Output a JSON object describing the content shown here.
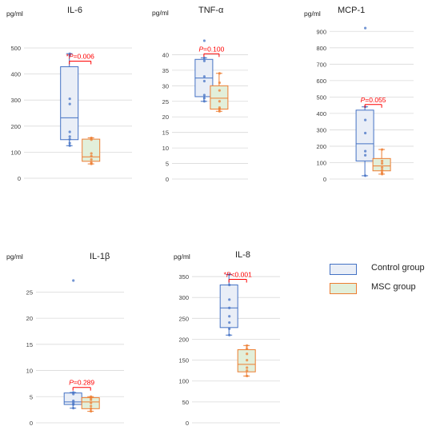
{
  "colors": {
    "control_stroke": "#4472c4",
    "control_fill": "#e9eef7",
    "msc_stroke": "#ed7d31",
    "msc_fill": "#e2efda",
    "significance": "#ff0000",
    "grid": "#d9d9d9",
    "axis_text": "#404040"
  },
  "legend": {
    "control_label": "Control group",
    "msc_label": "MSC group"
  },
  "chart_data": [
    {
      "type": "box",
      "title": "IL-6",
      "ylabel": "pg/ml",
      "ylim": [
        0,
        500
      ],
      "yticks": [
        0,
        100,
        200,
        300,
        400,
        500
      ],
      "pvalue": "P=0.006",
      "pvalue_star": "*",
      "series": [
        {
          "name": "Control group",
          "min": 125,
          "q1": 148,
          "median": 232,
          "q3": 428,
          "max": 478,
          "points": [
            478,
            472,
            305,
            285,
            178,
            160,
            150,
            135,
            125
          ]
        },
        {
          "name": "MSC group",
          "min": 55,
          "q1": 65,
          "median": 82,
          "q3": 150,
          "max": 155,
          "points": [
            155,
            148,
            95,
            85,
            72,
            60,
            55
          ]
        }
      ]
    },
    {
      "type": "box",
      "title": "TNF-α",
      "ylabel": "pg/ml",
      "ylim": [
        0,
        45
      ],
      "yticks": [
        0,
        5,
        10,
        15,
        20,
        25,
        30,
        35,
        40
      ],
      "pvalue": "P=0.100",
      "pvalue_star": "",
      "series": [
        {
          "name": "Control group",
          "min": 25,
          "q1": 26.5,
          "median": 32.5,
          "q3": 38.5,
          "max": 39,
          "points": [
            44.5,
            39,
            38,
            33,
            31.5,
            27,
            26,
            25
          ]
        },
        {
          "name": "MSC group",
          "min": 21.8,
          "q1": 22.5,
          "median": 26,
          "q3": 30,
          "max": 34,
          "points": [
            34,
            31,
            28.5,
            25,
            23,
            22.5,
            21.8
          ]
        }
      ]
    },
    {
      "type": "box",
      "title": "MCP-1",
      "ylabel": "pg/ml",
      "ylim": [
        0,
        950
      ],
      "yticks": [
        0,
        100,
        200,
        300,
        400,
        500,
        600,
        700,
        800,
        900
      ],
      "pvalue": "P=0.055",
      "pvalue_star": "",
      "series": [
        {
          "name": "Control group",
          "min": 20,
          "q1": 110,
          "median": 215,
          "q3": 420,
          "max": 440,
          "points": [
            920,
            440,
            360,
            280,
            170,
            145,
            20
          ]
        },
        {
          "name": "MSC group",
          "min": 30,
          "q1": 50,
          "median": 80,
          "q3": 125,
          "max": 180,
          "points": [
            180,
            110,
            95,
            70,
            55,
            40,
            30
          ]
        }
      ]
    },
    {
      "type": "box",
      "title": "IL-1β",
      "ylabel": "pg/ml",
      "ylim": [
        0,
        27.5
      ],
      "yticks": [
        0,
        5,
        10,
        15,
        20,
        25
      ],
      "pvalue": "P=0.289",
      "pvalue_star": "",
      "series": [
        {
          "name": "Control group",
          "min": 2.8,
          "q1": 3.5,
          "median": 4,
          "q3": 5.7,
          "max": 5.8,
          "points": [
            27.2,
            5.8,
            5.5,
            4.2,
            3.8,
            3.5,
            2.8
          ]
        },
        {
          "name": "MSC group",
          "min": 2.2,
          "q1": 2.7,
          "median": 4,
          "q3": 4.8,
          "max": 5,
          "points": [
            5,
            4.7,
            4.4,
            3.8,
            3.2,
            2.7,
            2.2
          ]
        }
      ]
    },
    {
      "type": "box",
      "title": "IL-8",
      "ylabel": "pg/ml",
      "ylim": [
        0,
        375
      ],
      "yticks": [
        0,
        50,
        100,
        150,
        200,
        250,
        300,
        350
      ],
      "pvalue": "P<0.001",
      "pvalue_star": "*",
      "series": [
        {
          "name": "Control group",
          "min": 210,
          "q1": 228,
          "median": 275,
          "q3": 330,
          "max": 355,
          "points": [
            355,
            330,
            295,
            275,
            255,
            240,
            225,
            210
          ]
        },
        {
          "name": "MSC group",
          "min": 112,
          "q1": 122,
          "median": 140,
          "q3": 175,
          "max": 185,
          "points": [
            185,
            178,
            165,
            150,
            132,
            125,
            112
          ]
        }
      ]
    }
  ]
}
